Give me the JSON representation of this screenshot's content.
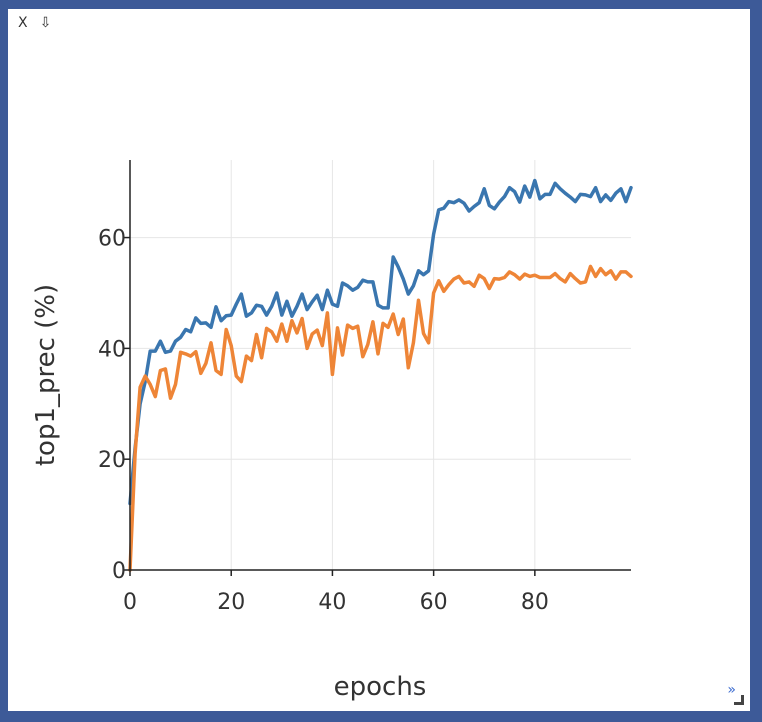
{
  "toolbar": {
    "close_label": "X",
    "download_label": "⇩"
  },
  "corner_mark": "»",
  "colors": {
    "series_1": "#3a76af",
    "series_2": "#ee8537",
    "grid": "#e6e6e6",
    "axis": "#222222",
    "text": "#333333"
  },
  "chart_data": {
    "type": "line",
    "title": "",
    "xlabel": "epochs",
    "ylabel": "top1_prec (%)",
    "xlim": [
      0,
      99
    ],
    "ylim": [
      0,
      74
    ],
    "x_ticks": [
      0,
      20,
      40,
      60,
      80
    ],
    "y_ticks": [
      0,
      20,
      40,
      60
    ],
    "grid": true,
    "legend": "none",
    "x": [
      0,
      1,
      2,
      3,
      4,
      5,
      6,
      7,
      8,
      9,
      10,
      11,
      12,
      13,
      14,
      15,
      16,
      17,
      18,
      19,
      20,
      21,
      22,
      23,
      24,
      25,
      26,
      27,
      28,
      29,
      30,
      31,
      32,
      33,
      34,
      35,
      36,
      37,
      38,
      39,
      40,
      41,
      42,
      43,
      44,
      45,
      46,
      47,
      48,
      49,
      50,
      51,
      52,
      53,
      54,
      55,
      56,
      57,
      58,
      59,
      60,
      61,
      62,
      63,
      64,
      65,
      66,
      67,
      68,
      69,
      70,
      71,
      72,
      73,
      74,
      75,
      76,
      77,
      78,
      79,
      80,
      81,
      82,
      83,
      84,
      85,
      86,
      87,
      88,
      89,
      90,
      91,
      92,
      93,
      94,
      95,
      96,
      97,
      98,
      99
    ],
    "series": [
      {
        "values": [
          12,
          22,
          30,
          34,
          39.5,
          39.5,
          41.3,
          39.3,
          39.5,
          41.3,
          42,
          43.4,
          43,
          45.5,
          44.5,
          44.6,
          43.8,
          47.5,
          45,
          45.9,
          46,
          48,
          49.8,
          45.8,
          46.4,
          47.8,
          47.6,
          46,
          47.6,
          50,
          46,
          48.5,
          45.8,
          47.6,
          49.8,
          47,
          48.4,
          49.6,
          47,
          50.5,
          48,
          47.6,
          51.8,
          51.3,
          50.5,
          51,
          52.3,
          52,
          52,
          47.8,
          47.3,
          47.3,
          56.5,
          54.7,
          52.5,
          49.8,
          51.3,
          54,
          53.3,
          54,
          60.6,
          65,
          65.3,
          66.5,
          66.3,
          66.8,
          66.2,
          64.8,
          65.6,
          66.3,
          68.8,
          65.8,
          65.2,
          66.4,
          67.4,
          69,
          68.3,
          66.4,
          69.3,
          67.3,
          70.3,
          67,
          67.8,
          67.8,
          69.8,
          68.8,
          68,
          67.3,
          66.5,
          67.8,
          67.7,
          67.4,
          69,
          66.5,
          67.7,
          66.7,
          68,
          68.8,
          66.5,
          69
        ]
      },
      {
        "values": [
          0,
          21,
          33,
          35,
          33.5,
          31.3,
          36,
          36.3,
          31,
          33.5,
          39.3,
          39,
          38.6,
          39.4,
          35.5,
          37.3,
          41,
          36,
          35.3,
          43.4,
          40.5,
          35,
          34,
          38.6,
          37.8,
          42.5,
          38.3,
          43.6,
          43,
          41.3,
          44.4,
          41.3,
          45,
          42.8,
          45.4,
          40,
          42.6,
          43.3,
          40.5,
          46.4,
          35.3,
          43.7,
          38.8,
          44.2,
          43.6,
          44,
          38.5,
          40.7,
          44.8,
          39,
          44.5,
          43.8,
          46.2,
          42.5,
          45.3,
          36.5,
          41,
          48.7,
          42.7,
          41,
          50,
          52.2,
          50.3,
          51.5,
          52.5,
          53,
          51.8,
          52,
          51.2,
          53.2,
          52.6,
          50.8,
          52.6,
          52.5,
          52.8,
          53.8,
          53.3,
          52.5,
          53.4,
          53,
          53.2,
          52.8,
          52.8,
          52.8,
          53.5,
          52.6,
          52,
          53.5,
          52.6,
          51.8,
          52,
          54.8,
          53,
          54.4,
          53.3,
          54,
          52.5,
          53.8,
          53.8,
          53
        ]
      }
    ]
  }
}
